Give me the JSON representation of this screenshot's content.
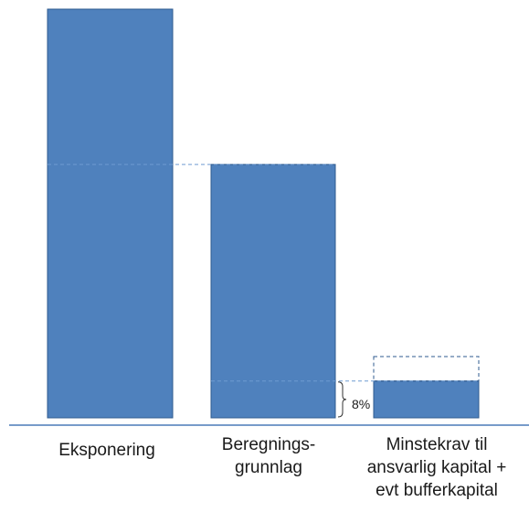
{
  "chart_data": {
    "type": "bar",
    "title": "",
    "xlabel": "",
    "ylabel": "",
    "categories": [
      "Eksponering",
      "Beregnings-\ngrunnlag",
      "Minstekrav til\nansvarlig kapital +\nevt bufferkapital"
    ],
    "values": [
      100,
      62,
      9
    ],
    "buffer_value": 6,
    "annotation": "8%",
    "ylim": [
      0,
      100
    ],
    "grid": false,
    "legend": "none",
    "colors": {
      "bar_fill": "#4f81bd",
      "bar_stroke": "#2f5b8f",
      "guide": "#6f9bd1",
      "axis": "#4a7ab8"
    }
  }
}
